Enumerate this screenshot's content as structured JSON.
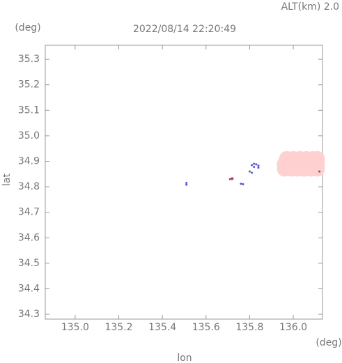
{
  "chart_data": {
    "type": "scatter",
    "title": "2022/08/14 22:20:49",
    "altitude_label": "ALT(km) 2.0",
    "y_unit": "(deg)",
    "x_unit": "(deg)",
    "x_label": "lon",
    "y_label": "lat",
    "xlim": [
      134.863,
      136.134
    ],
    "ylim": [
      34.281,
      35.355
    ],
    "xticks": [
      {
        "value": 135.0,
        "label": "135.0"
      },
      135.2,
      135.4,
      135.6,
      135.8,
      {
        "value": 136.0,
        "label": "136.0"
      }
    ],
    "yticks": [
      35.3,
      35.2,
      35.1,
      {
        "value": 35.0,
        "label": "35.0"
      },
      34.9,
      34.8,
      34.7,
      34.6,
      34.5,
      34.4,
      34.3
    ],
    "series": [
      {
        "color": "#ffd0d0",
        "marker_size": 11,
        "x": [
          135.96,
          135.99,
          136.02,
          136.05,
          136.08,
          136.11,
          135.96,
          135.99,
          136.02,
          136.05,
          136.08,
          136.11,
          135.97,
          136.0,
          136.03,
          136.06,
          136.09,
          136.11
        ],
        "y": [
          34.87,
          34.87,
          34.87,
          34.87,
          34.87,
          34.87,
          34.89,
          34.89,
          34.89,
          34.89,
          34.89,
          34.89,
          34.91,
          34.91,
          34.91,
          34.91,
          34.91,
          34.91
        ]
      },
      {
        "color": "#5555cc",
        "marker_size": 1.5,
        "x": [
          135.81,
          135.82,
          135.83,
          135.84,
          135.82,
          135.84,
          135.8,
          135.81,
          135.51,
          135.51,
          135.76,
          135.77,
          135.71,
          136.12
        ],
        "y": [
          34.885,
          34.89,
          34.888,
          34.883,
          34.878,
          34.875,
          34.86,
          34.855,
          34.815,
          34.808,
          34.812,
          34.81,
          34.83,
          34.86
        ]
      },
      {
        "color": "#dd3333",
        "marker_size": 2,
        "x": [
          135.72
        ],
        "y": [
          34.832
        ]
      }
    ]
  }
}
